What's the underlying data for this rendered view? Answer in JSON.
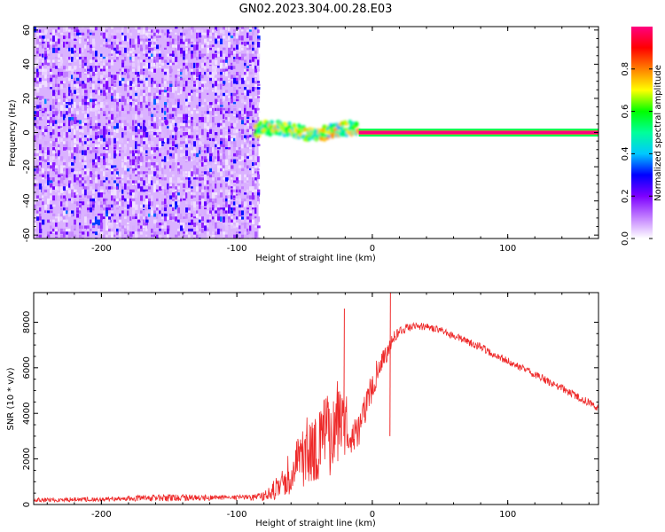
{
  "title": "GN02.2023.304.00.28.E03",
  "chart_data": [
    {
      "type": "heatmap",
      "name": "spectrogram",
      "xlabel": "Height of straight line (km)",
      "ylabel": "Frequency (Hz)",
      "xlim": [
        -250,
        167
      ],
      "ylim": [
        -62,
        62
      ],
      "xticks": [
        -200,
        -100,
        0,
        100
      ],
      "yticks": [
        -60,
        -40,
        -20,
        0,
        20,
        40,
        60
      ],
      "regions": [
        {
          "label": "broadband noise",
          "x_range": [
            -250,
            -84
          ],
          "freq_range": [
            -62,
            62
          ],
          "amplitude": [
            0.02,
            0.25
          ]
        },
        {
          "label": "narrowband signal onset",
          "x_range": [
            -86,
            -10
          ],
          "freq_range": [
            -5,
            7
          ],
          "amplitude": [
            0.2,
            0.8
          ]
        },
        {
          "label": "steady carrier",
          "x_range": [
            -10,
            167
          ],
          "freq_range": [
            -1,
            1
          ],
          "amplitude": [
            0.85,
            1.0
          ]
        }
      ],
      "spots": [
        {
          "x": -168,
          "freq": 2,
          "amplitude": 0.25
        },
        {
          "x": -152,
          "freq": 6,
          "amplitude": 0.2
        },
        {
          "x": -145,
          "freq": 2,
          "amplitude": 0.22
        }
      ],
      "colorbar": {
        "label": "Normalized spectral amplitude",
        "range": [
          0,
          1
        ],
        "ticks": [
          0.0,
          0.2,
          0.4,
          0.6,
          0.8
        ],
        "colors": [
          "#ffffff",
          "#c27fff",
          "#7d00ff",
          "#0000ff",
          "#00c8ff",
          "#00ff9a",
          "#00ff00",
          "#ffff00",
          "#ff8000",
          "#ff0000",
          "#ff0080"
        ]
      }
    },
    {
      "type": "line",
      "name": "snr",
      "xlabel": "Height of straight line (km)",
      "ylabel": "SNR (10 * v/v)",
      "xlim": [
        -250,
        167
      ],
      "ylim": [
        0,
        9300
      ],
      "xticks": [
        -200,
        -100,
        0,
        100
      ],
      "yticks": [
        0,
        2000,
        4000,
        6000,
        8000
      ],
      "color": "#ee2a2a",
      "series": [
        {
          "name": "SNR",
          "x": [
            -250,
            -200,
            -150,
            -100,
            -80,
            -70,
            -60,
            -50,
            -40,
            -30,
            -25,
            -20,
            -18,
            -15,
            -10,
            -5,
            0,
            5,
            10,
            13,
            15,
            20,
            25,
            30,
            40,
            50,
            60,
            80,
            100,
            120,
            140,
            167
          ],
          "y": [
            200,
            230,
            300,
            300,
            350,
            700,
            1500,
            2300,
            2700,
            3200,
            3500,
            4000,
            3000,
            2900,
            3300,
            4200,
            5200,
            6000,
            6600,
            7000,
            7300,
            7600,
            7750,
            7800,
            7800,
            7650,
            7400,
            6900,
            6300,
            5700,
            5100,
            4250
          ],
          "noise": [
            100,
            100,
            160,
            100,
            200,
            600,
            1000,
            1500,
            1600,
            1900,
            2100,
            2300,
            500,
            700,
            800,
            700,
            650,
            600,
            500,
            400,
            300,
            200,
            180,
            170,
            170,
            170,
            170,
            170,
            170,
            170,
            170,
            170
          ]
        }
      ],
      "spikes": [
        {
          "x": -21,
          "y": 8600
        },
        {
          "x": 13,
          "y": 9300
        }
      ]
    }
  ]
}
